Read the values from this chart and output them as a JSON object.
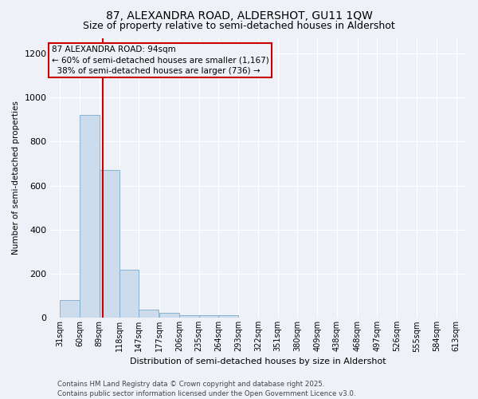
{
  "title": "87, ALEXANDRA ROAD, ALDERSHOT, GU11 1QW",
  "subtitle": "Size of property relative to semi-detached houses in Aldershot",
  "xlabel": "Distribution of semi-detached houses by size in Aldershot",
  "ylabel": "Number of semi-detached properties",
  "bins": [
    31,
    60,
    89,
    118,
    147,
    177,
    206,
    235,
    264,
    293,
    322,
    351,
    380,
    409,
    438,
    468,
    497,
    526,
    555,
    584,
    613
  ],
  "counts": [
    80,
    920,
    670,
    220,
    37,
    22,
    12,
    13,
    12,
    0,
    0,
    0,
    0,
    0,
    0,
    0,
    0,
    0,
    0,
    0
  ],
  "bar_color": "#ccdcec",
  "bar_edge_color": "#7aabcc",
  "property_line_x": 94,
  "property_line_color": "#cc0000",
  "annotation_line1": "87 ALEXANDRA ROAD: 94sqm",
  "annotation_line2": "← 60% of semi-detached houses are smaller (1,167)",
  "annotation_line3": "  38% of semi-detached houses are larger (736) →",
  "annotation_box_color": "#cc0000",
  "ylim": [
    0,
    1270
  ],
  "yticks": [
    0,
    200,
    400,
    600,
    800,
    1000,
    1200
  ],
  "background_color": "#eef2f8",
  "footer_line1": "Contains HM Land Registry data © Crown copyright and database right 2025.",
  "footer_line2": "Contains public sector information licensed under the Open Government Licence v3.0.",
  "title_fontsize": 10,
  "subtitle_fontsize": 9,
  "ylabel_fontsize": 7.5,
  "xlabel_fontsize": 8,
  "annotation_fontsize": 7.5,
  "footer_fontsize": 6.2,
  "tick_fontsize": 7,
  "ytick_fontsize": 8
}
